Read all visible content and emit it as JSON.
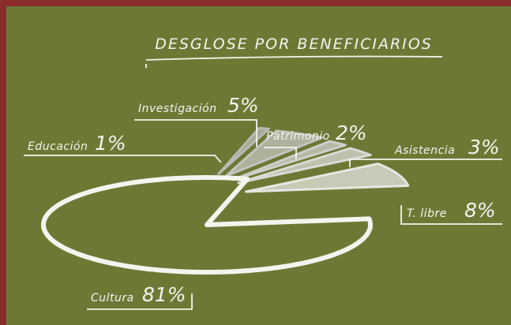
{
  "chart_data": {
    "type": "pie",
    "title": "DESGLOSE POR BENEFICIARIOS",
    "categories": [
      "Educación",
      "Investigación",
      "Patrimonio",
      "Asistencia",
      "T. libre",
      "Cultura"
    ],
    "values": [
      1,
      5,
      2,
      3,
      8,
      81
    ],
    "value_labels": [
      "1%",
      "5%",
      "2%",
      "3%",
      "8%",
      "81%"
    ],
    "colors": [
      "#b9b9b4",
      "#c4c4bf",
      "#cfcfca",
      "#dadad5",
      "#e6e6e1",
      "#f4f4ef"
    ]
  }
}
